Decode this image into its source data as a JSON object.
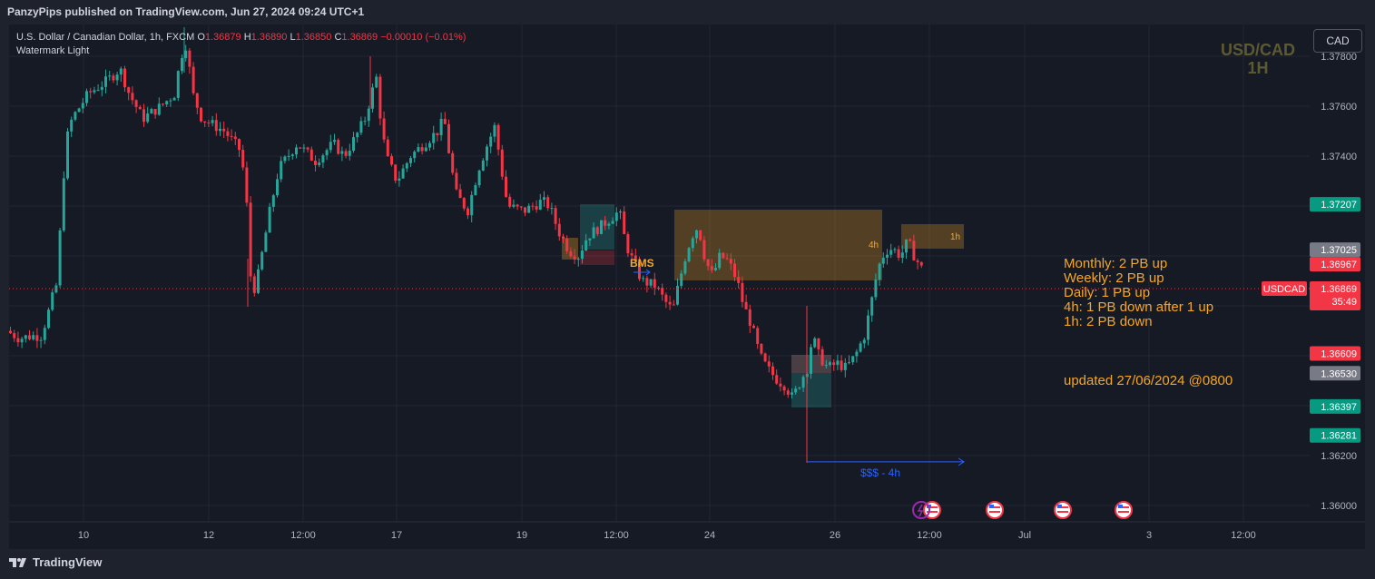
{
  "header": {
    "published": "PanzyPips published on TradingView.com, Jun 27, 2024 09:24 UTC+1"
  },
  "legend": {
    "symbol_line": "U.S. Dollar / Canadian Dollar, 1h, FXCM",
    "o_label": "O",
    "o": "1.36879",
    "h_label": "H",
    "h": "1.36890",
    "l_label": "L",
    "l": "1.36850",
    "c_label": "C",
    "c": "1.36869",
    "change": "−0.00010 (−0.01%)",
    "watermark": "Watermark Light"
  },
  "currency_button": "CAD",
  "symbol_title": {
    "line1": "USD/CAD",
    "line2": "1H"
  },
  "notes": [
    "Monthly: 2 PB up",
    "Weekly: 2 PB up",
    "Daily: 1 PB up",
    "4h: 1 PB down after 1 up",
    "1h: 2 PB down"
  ],
  "updated": "updated 27/06/2024 @0800",
  "footer": {
    "brand": "TradingView"
  },
  "colors": {
    "up": "#26a69a",
    "down": "#f23645",
    "zone": "#f5a623",
    "blue": "#2962ff",
    "bg": "#161a25"
  },
  "chart_data": {
    "type": "candlestick",
    "symbol": "USDCAD",
    "timeframe": "1h",
    "y_ticks": [
      "1.37800",
      "1.37600",
      "1.37400",
      "1.36200",
      "1.36000"
    ],
    "x_ticks": [
      "10",
      "12",
      "12:00",
      "17",
      "19",
      "12:00",
      "24",
      "26",
      "12:00",
      "Jul",
      "3",
      "12:00"
    ],
    "ylim": [
      1.3595,
      1.3795
    ],
    "price_labels": [
      {
        "value": 1.37207,
        "text": "1.37207",
        "color": "#089981"
      },
      {
        "value": 1.37025,
        "text": "1.37025",
        "color": "#787b86"
      },
      {
        "value": 1.36967,
        "text": "1.36967",
        "color": "#f23645"
      },
      {
        "value": 1.36869,
        "text": "1.36869",
        "color": "#f23645"
      },
      {
        "value": 1.36609,
        "text": "1.36609",
        "color": "#f23645"
      },
      {
        "value": 1.3653,
        "text": "1.36530",
        "color": "#787b86"
      },
      {
        "value": 1.36397,
        "text": "1.36397",
        "color": "#089981"
      },
      {
        "value": 1.36281,
        "text": "1.36281",
        "color": "#089981"
      }
    ],
    "current_price": {
      "symbol": "USDCAD",
      "value": 1.36869,
      "text": "1.36869",
      "countdown": "35:49"
    },
    "annotations": {
      "bms": "BMS",
      "zone_4h": "4h",
      "zone_1h": "1h",
      "liquidity": "$$$ - 4h",
      "liquidity_level": 1.36175
    },
    "price_path": [
      [
        0,
        1.367
      ],
      [
        14,
        1.3667
      ],
      [
        28,
        1.3668
      ],
      [
        38,
        1.3668
      ],
      [
        45,
        1.3676
      ],
      [
        50,
        1.3683
      ],
      [
        54,
        1.3685
      ],
      [
        60,
        1.3715
      ],
      [
        65,
        1.3745
      ],
      [
        72,
        1.3755
      ],
      [
        90,
        1.3765
      ],
      [
        110,
        1.377
      ],
      [
        125,
        1.3775
      ],
      [
        135,
        1.3765
      ],
      [
        150,
        1.3755
      ],
      [
        170,
        1.376
      ],
      [
        185,
        1.3765
      ],
      [
        192,
        1.378
      ],
      [
        198,
        1.3785
      ],
      [
        205,
        1.3765
      ],
      [
        215,
        1.3755
      ],
      [
        240,
        1.375
      ],
      [
        258,
        1.3742
      ],
      [
        264,
        1.3725
      ],
      [
        268,
        1.3693
      ],
      [
        274,
        1.3686
      ],
      [
        280,
        1.3698
      ],
      [
        290,
        1.3718
      ],
      [
        300,
        1.3735
      ],
      [
        320,
        1.3745
      ],
      [
        340,
        1.3738
      ],
      [
        360,
        1.3745
      ],
      [
        372,
        1.374
      ],
      [
        385,
        1.3748
      ],
      [
        395,
        1.3755
      ],
      [
        402,
        1.3765
      ],
      [
        408,
        1.3772
      ],
      [
        412,
        1.3755
      ],
      [
        418,
        1.374
      ],
      [
        430,
        1.373
      ],
      [
        445,
        1.374
      ],
      [
        460,
        1.3745
      ],
      [
        475,
        1.375
      ],
      [
        482,
        1.3755
      ],
      [
        488,
        1.374
      ],
      [
        495,
        1.3725
      ],
      [
        508,
        1.3718
      ],
      [
        520,
        1.3735
      ],
      [
        530,
        1.3745
      ],
      [
        538,
        1.3752
      ],
      [
        545,
        1.3735
      ],
      [
        552,
        1.372
      ],
      [
        570,
        1.3718
      ],
      [
        590,
        1.3722
      ],
      [
        598,
        1.372
      ],
      [
        608,
        1.371
      ],
      [
        620,
        1.3702
      ],
      [
        630,
        1.37
      ],
      [
        640,
        1.3708
      ],
      [
        655,
        1.3712
      ],
      [
        665,
        1.3715
      ],
      [
        675,
        1.3718
      ],
      [
        682,
        1.3705
      ],
      [
        690,
        1.3698
      ],
      [
        700,
        1.369
      ],
      [
        715,
        1.3688
      ],
      [
        725,
        1.3682
      ],
      [
        734,
        1.3678
      ],
      [
        740,
        1.3688
      ],
      [
        748,
        1.37
      ],
      [
        755,
        1.3708
      ],
      [
        762,
        1.3712
      ],
      [
        770,
        1.3698
      ],
      [
        778,
        1.3692
      ],
      [
        786,
        1.37
      ],
      [
        795,
        1.3698
      ],
      [
        805,
        1.369
      ],
      [
        812,
        1.368
      ],
      [
        818,
        1.3675
      ],
      [
        824,
        1.3668
      ],
      [
        830,
        1.366
      ],
      [
        838,
        1.3655
      ],
      [
        850,
        1.365
      ],
      [
        858,
        1.3648
      ],
      [
        866,
        1.3643
      ],
      [
        875,
        1.365
      ],
      [
        882,
        1.3655
      ],
      [
        888,
        1.3668
      ],
      [
        895,
        1.366
      ],
      [
        905,
        1.3655
      ],
      [
        915,
        1.3657
      ],
      [
        925,
        1.3655
      ],
      [
        935,
        1.366
      ],
      [
        945,
        1.3668
      ],
      [
        952,
        1.368
      ],
      [
        960,
        1.3695
      ],
      [
        968,
        1.3702
      ],
      [
        976,
        1.3703
      ],
      [
        985,
        1.37
      ],
      [
        993,
        1.3706
      ],
      [
        1000,
        1.37
      ],
      [
        1008,
        1.3695
      ],
      [
        1016,
        1.3687
      ]
    ]
  }
}
